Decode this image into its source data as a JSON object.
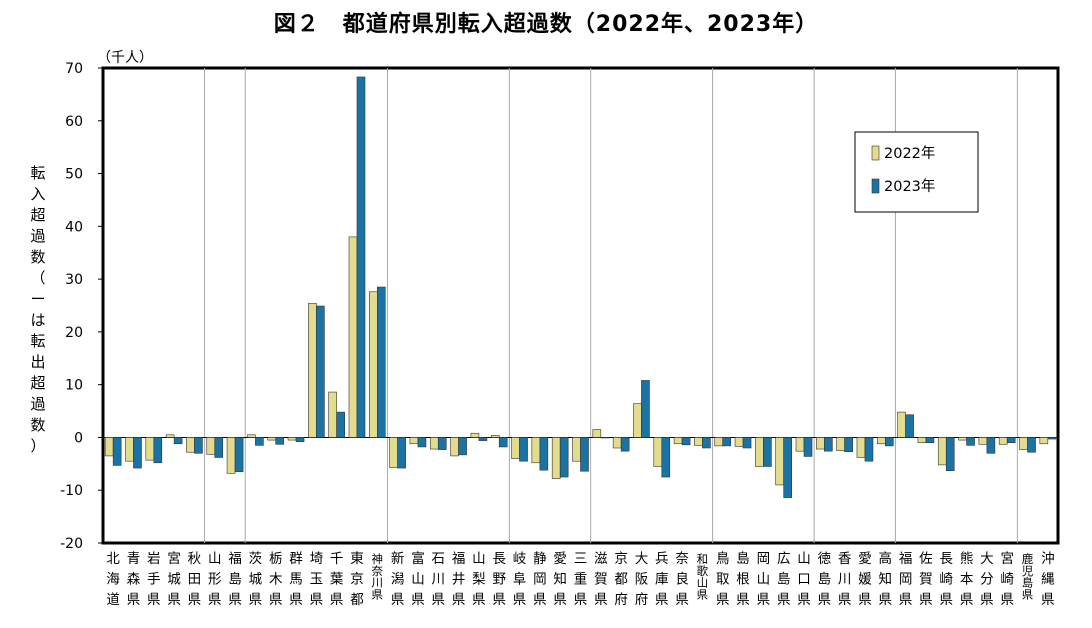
{
  "chart_data": {
    "type": "bar",
    "title": "図２　都道府県別転入超過数（2022年、2023年）",
    "unit_label": "（千人）",
    "ylabel": "転入超過数（ーは転出超過数）",
    "ylim": [
      -20,
      70
    ],
    "yticks": [
      70,
      60,
      50,
      40,
      30,
      20,
      10,
      0,
      -10,
      -20
    ],
    "grid": "vertical-group-separators",
    "legend_position": "top-right",
    "categories": [
      "北海道",
      "青森県",
      "岩手県",
      "宮城県",
      "秋田県",
      "山形県",
      "福島県",
      "茨城県",
      "栃木県",
      "群馬県",
      "埼玉県",
      "千葉県",
      "東京都",
      "神奈川県",
      "新潟県",
      "富山県",
      "石川県",
      "福井県",
      "山梨県",
      "長野県",
      "岐阜県",
      "静岡県",
      "愛知県",
      "三重県",
      "滋賀県",
      "京都府",
      "大阪府",
      "兵庫県",
      "奈良県",
      "和歌山県",
      "鳥取県",
      "島根県",
      "岡山県",
      "広島県",
      "山口県",
      "徳島県",
      "香川県",
      "愛媛県",
      "高知県",
      "福岡県",
      "佐賀県",
      "長崎県",
      "熊本県",
      "大分県",
      "宮崎県",
      "鹿児島県",
      "沖縄県"
    ],
    "series": [
      {
        "name": "2022年",
        "color": "#e3dc8e",
        "values": [
          -3.5,
          -4.5,
          -4.3,
          0.5,
          -2.8,
          -3.2,
          -6.8,
          0.5,
          -0.5,
          -0.5,
          25.4,
          8.6,
          38.0,
          27.6,
          -5.7,
          -1.2,
          -2.2,
          -3.5,
          0.8,
          0.4,
          -4.0,
          -4.8,
          -7.8,
          -4.5,
          1.5,
          -2.0,
          6.4,
          -5.5,
          -1.2,
          -1.5,
          -1.6,
          -1.7,
          -5.5,
          -9.0,
          -2.6,
          -2.2,
          -2.5,
          -3.8,
          -1.2,
          4.8,
          -1.0,
          -5.2,
          -0.5,
          -1.3,
          -1.3,
          -2.3,
          -1.2
        ]
      },
      {
        "name": "2023年",
        "color": "#1a73a3",
        "values": [
          -5.3,
          -5.8,
          -4.8,
          -1.2,
          -3.0,
          -3.8,
          -6.5,
          -1.5,
          -1.3,
          -0.8,
          24.9,
          4.8,
          68.3,
          28.5,
          -5.8,
          -1.8,
          -2.3,
          -3.3,
          -0.6,
          -1.8,
          -4.5,
          -6.2,
          -7.5,
          -6.4,
          0,
          -2.6,
          10.8,
          -7.5,
          -1.4,
          -2.0,
          -1.6,
          -2.0,
          -5.5,
          -11.4,
          -3.6,
          -2.6,
          -2.7,
          -4.5,
          -1.6,
          4.3,
          -1.0,
          -6.3,
          -1.5,
          -3.0,
          -1.0,
          -2.8,
          -0.3
        ]
      }
    ]
  }
}
